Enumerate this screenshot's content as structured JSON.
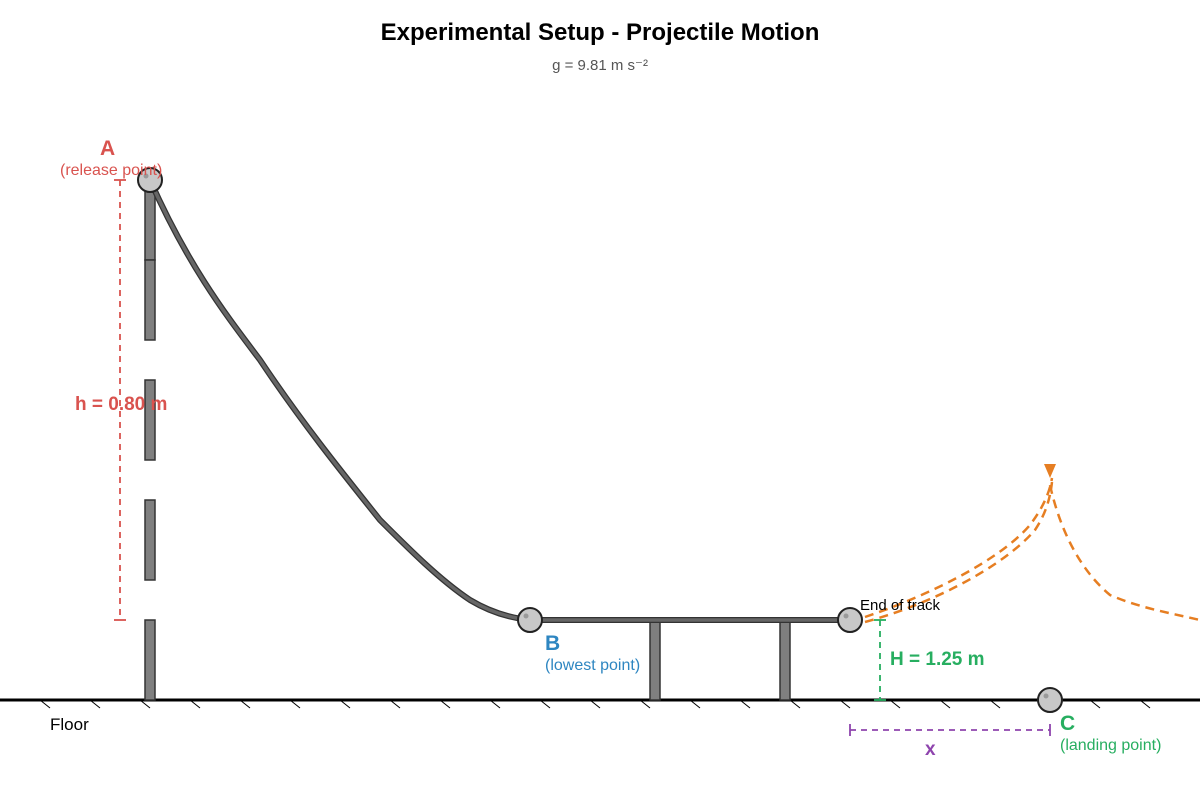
{
  "header": {
    "title": "Experimental Setup - Projectile Motion",
    "subtitle": "g = 9.81 m s⁻²"
  },
  "points": {
    "a": {
      "letter": "A",
      "desc": "(release point)"
    },
    "b": {
      "letter": "B",
      "desc": "(lowest point)"
    },
    "c": {
      "letter": "C",
      "desc": "(landing point)"
    }
  },
  "dimensions": {
    "release_height": "h = 0.80 m",
    "table_height": "H = 1.25 m",
    "range": "x"
  },
  "labels": {
    "floor": "Floor",
    "end_of_track": "End of track"
  },
  "colors": {
    "point_a": "#d9534f",
    "point_b": "#2e86c1",
    "point_c": "#27ae60",
    "range": "#8e44ad",
    "trajectory": "#e67e22",
    "track": "#555555",
    "support": "#7f7f7f",
    "ball": "#c8c8c8"
  }
}
